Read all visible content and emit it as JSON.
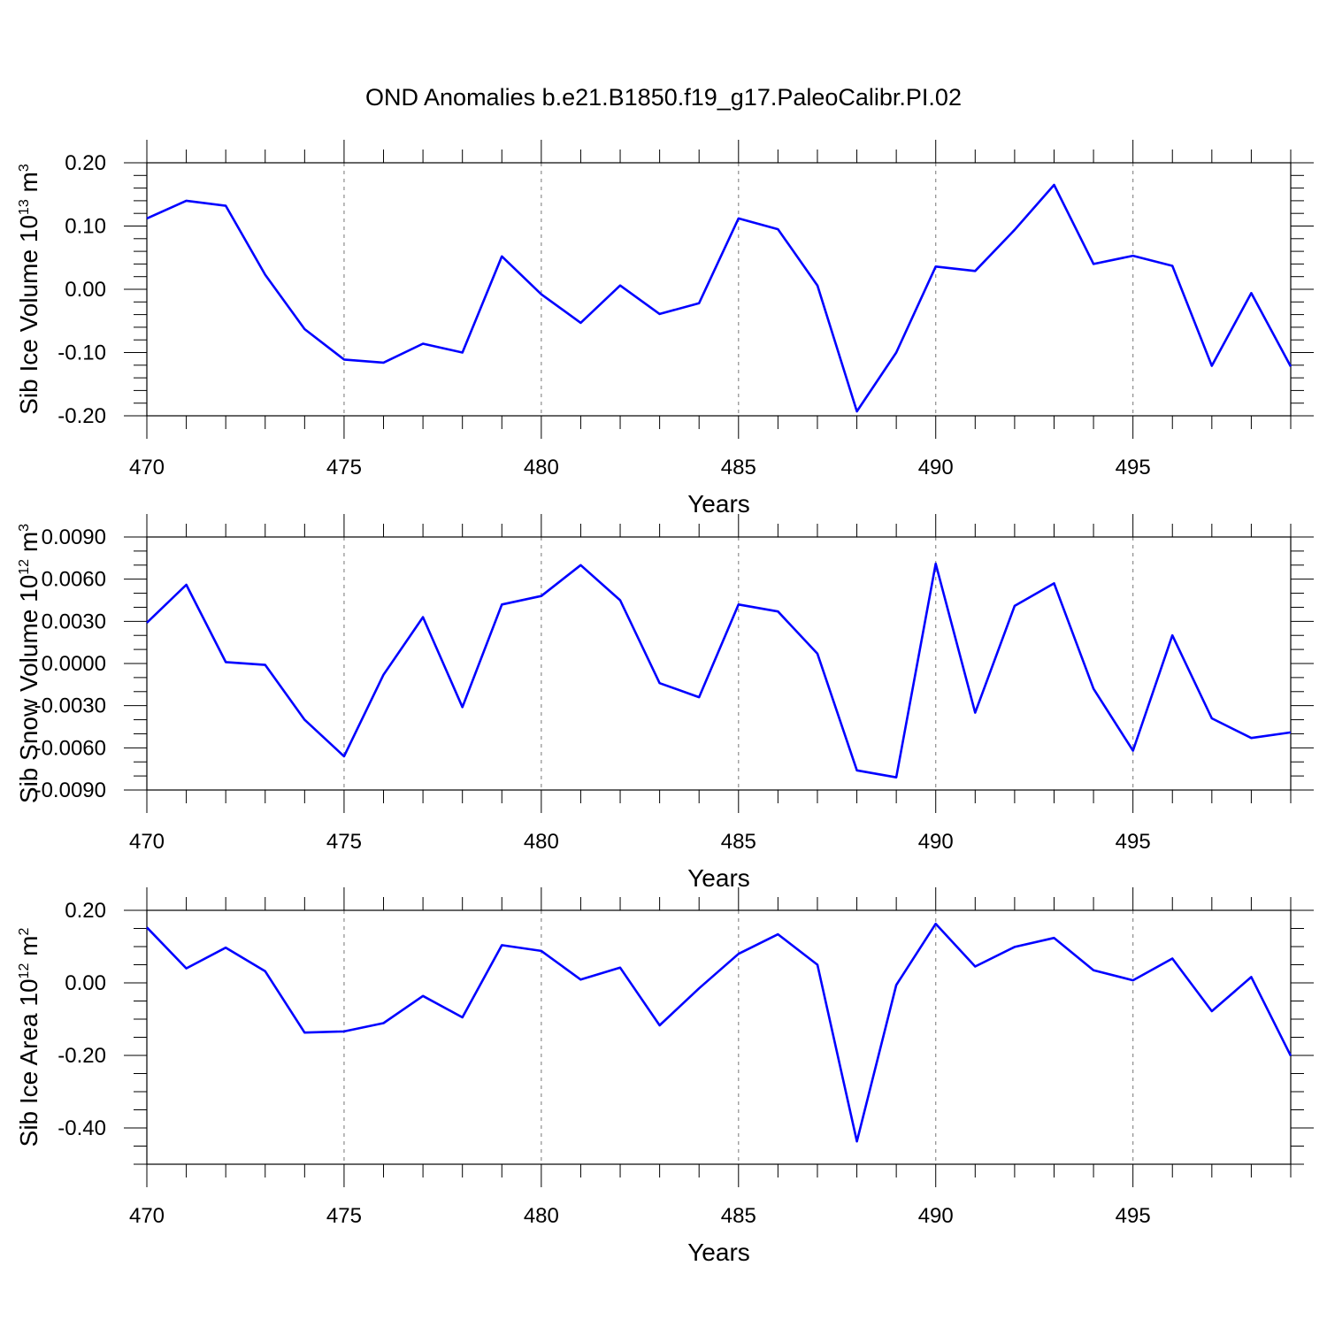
{
  "title": "OND Anomalies b.e21.B1850.f19_g17.PaleoCalibr.PI.02",
  "chart_data": [
    {
      "type": "line",
      "ylabel": {
        "base": "Sib Ice Volume 10",
        "sup1": "13",
        "mid": " m",
        "sup2": "3"
      },
      "xlabel": "Years",
      "xlim": [
        470,
        499
      ],
      "ylim": [
        -0.2,
        0.2
      ],
      "x_ticks": [
        470,
        475,
        480,
        485,
        490,
        495
      ],
      "x_tick_labels": [
        "470",
        "475",
        "480",
        "485",
        "490",
        "495"
      ],
      "y_ticks": [
        -0.2,
        -0.1,
        0.0,
        0.1,
        0.2
      ],
      "y_tick_labels": [
        "-0.20",
        "-0.10",
        "0.00",
        "0.10",
        "0.20"
      ],
      "y_minor_step": 0.02,
      "x": [
        470,
        471,
        472,
        473,
        474,
        475,
        476,
        477,
        478,
        479,
        480,
        481,
        482,
        483,
        484,
        485,
        486,
        487,
        488,
        489,
        490,
        491,
        492,
        493,
        494,
        495,
        496,
        497,
        498,
        499
      ],
      "series": [
        {
          "color": "#0000ff",
          "values": [
            0.112,
            0.14,
            0.132,
            0.023,
            -0.063,
            -0.111,
            -0.116,
            -0.086,
            -0.1,
            0.052,
            -0.008,
            -0.053,
            0.006,
            -0.039,
            -0.022,
            0.112,
            0.095,
            0.006,
            -0.193,
            -0.1,
            0.036,
            0.029,
            0.094,
            0.165,
            0.04,
            0.053,
            0.037,
            -0.121,
            -0.006,
            -0.122
          ]
        }
      ],
      "grid": "vertical dashed at major x ticks"
    },
    {
      "type": "line",
      "ylabel": {
        "base": "Sib Snow Volume 10",
        "sup1": "12",
        "mid": " m",
        "sup2": "3"
      },
      "xlabel": "Years",
      "xlim": [
        470,
        499
      ],
      "ylim": [
        -0.009,
        0.009
      ],
      "x_ticks": [
        470,
        475,
        480,
        485,
        490,
        495
      ],
      "x_tick_labels": [
        "470",
        "475",
        "480",
        "485",
        "490",
        "495"
      ],
      "y_ticks": [
        -0.009,
        -0.006,
        -0.003,
        0.0,
        0.003,
        0.006,
        0.009
      ],
      "y_tick_labels": [
        "-0.0090",
        "-0.0060",
        "-0.0030",
        "0.0000",
        "0.0030",
        "0.0060",
        "0.0090"
      ],
      "y_minor_step": 0.001,
      "x": [
        470,
        471,
        472,
        473,
        474,
        475,
        476,
        477,
        478,
        479,
        480,
        481,
        482,
        483,
        484,
        485,
        486,
        487,
        488,
        489,
        490,
        491,
        492,
        493,
        494,
        495,
        496,
        497,
        498,
        499
      ],
      "series": [
        {
          "color": "#0000ff",
          "values": [
            0.0029,
            0.0056,
            0.0001,
            -0.0001,
            -0.004,
            -0.0066,
            -0.0008,
            0.0033,
            -0.0031,
            0.0042,
            0.0048,
            0.007,
            0.0045,
            -0.0014,
            -0.0024,
            0.0042,
            0.0037,
            0.0007,
            -0.0076,
            -0.0081,
            0.0071,
            -0.0035,
            0.0041,
            0.0057,
            -0.0018,
            -0.0062,
            0.002,
            -0.0039,
            -0.0053,
            -0.0049
          ]
        }
      ],
      "grid": "vertical dashed at major x ticks"
    },
    {
      "type": "line",
      "ylabel": {
        "base": "Sib Ice Area 10",
        "sup1": "12",
        "mid": " m",
        "sup2": "2"
      },
      "xlabel": "Years",
      "xlim": [
        470,
        499
      ],
      "ylim": [
        -0.5,
        0.2
      ],
      "x_ticks": [
        470,
        475,
        480,
        485,
        490,
        495
      ],
      "x_tick_labels": [
        "470",
        "475",
        "480",
        "485",
        "490",
        "495"
      ],
      "y_ticks": [
        -0.4,
        -0.2,
        0.0,
        0.2
      ],
      "y_tick_labels": [
        "-0.40",
        "-0.20",
        "0.00",
        "0.20"
      ],
      "y_minor_step": 0.05,
      "x": [
        470,
        471,
        472,
        473,
        474,
        475,
        476,
        477,
        478,
        479,
        480,
        481,
        482,
        483,
        484,
        485,
        486,
        487,
        488,
        489,
        490,
        491,
        492,
        493,
        494,
        495,
        496,
        497,
        498,
        499
      ],
      "series": [
        {
          "color": "#0000ff",
          "values": [
            0.153,
            0.04,
            0.097,
            0.032,
            -0.137,
            -0.134,
            -0.111,
            -0.036,
            -0.095,
            0.104,
            0.088,
            0.009,
            0.042,
            -0.117,
            -0.015,
            0.08,
            0.134,
            0.05,
            -0.437,
            -0.006,
            0.163,
            0.045,
            0.099,
            0.124,
            0.035,
            0.007,
            0.067,
            -0.078,
            0.016,
            -0.201
          ]
        }
      ],
      "grid": "vertical dashed at major x ticks"
    }
  ]
}
